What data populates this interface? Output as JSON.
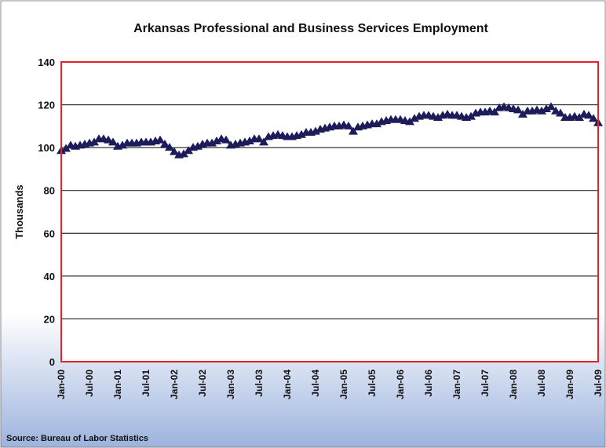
{
  "chart_data": {
    "type": "line",
    "title": "Arkansas Professional and Business Services Employment",
    "y_label": "Thousands",
    "source": "Source: Bureau of Labor Statistics",
    "categories": [
      "Jan-00",
      null,
      null,
      null,
      null,
      null,
      "Jul-00",
      null,
      null,
      null,
      null,
      null,
      "Jan-01",
      null,
      null,
      null,
      null,
      null,
      "Jul-01",
      null,
      null,
      null,
      null,
      null,
      "Jan-02",
      null,
      null,
      null,
      null,
      null,
      "Jul-02",
      null,
      null,
      null,
      null,
      null,
      "Jan-03",
      null,
      null,
      null,
      null,
      null,
      "Jul-03",
      null,
      null,
      null,
      null,
      null,
      "Jan-04",
      null,
      null,
      null,
      null,
      null,
      "Jul-04",
      null,
      null,
      null,
      null,
      null,
      "Jan-05",
      null,
      null,
      null,
      null,
      null,
      "Jul-05",
      null,
      null,
      null,
      null,
      null,
      "Jan-06",
      null,
      null,
      null,
      null,
      null,
      "Jul-06",
      null,
      null,
      null,
      null,
      null,
      "Jan-07",
      null,
      null,
      null,
      null,
      null,
      "Jul-07",
      null,
      null,
      null,
      null,
      null,
      "Jan-08",
      null,
      null,
      null,
      null,
      null,
      "Jul-08",
      null,
      null,
      null,
      null,
      null,
      "Jan-09",
      null,
      null,
      null,
      null,
      null,
      "Jul-09"
    ],
    "series": [
      {
        "name": "Employment",
        "color": "#1c1c5a",
        "values": [
          98.5,
          99.5,
          101,
          100.5,
          101,
          101.5,
          102,
          102.5,
          104,
          104,
          103.5,
          102.5,
          100.5,
          101,
          102,
          102,
          102,
          102.5,
          102.5,
          102.5,
          103,
          103.5,
          101.5,
          100,
          98,
          96.5,
          97,
          98.5,
          100,
          100.5,
          101.5,
          102,
          102,
          103,
          104,
          103.5,
          101,
          101.5,
          102,
          102.5,
          103,
          104,
          104,
          102.5,
          105,
          105.5,
          106,
          105.5,
          105,
          105,
          105.5,
          106,
          107,
          107,
          107.5,
          108.5,
          109,
          109.5,
          110,
          110,
          110.5,
          110,
          107.5,
          109.5,
          110,
          110.5,
          111,
          111,
          112,
          112.5,
          113,
          113,
          113,
          112.5,
          112,
          113.5,
          114.5,
          115,
          115,
          114.5,
          114,
          115,
          115.5,
          115,
          115,
          114.5,
          114,
          114.5,
          116,
          116.5,
          116.5,
          117,
          116.5,
          118.5,
          119,
          118.5,
          118,
          117.5,
          115.5,
          117,
          117,
          117.5,
          117,
          118,
          119,
          117,
          116,
          114,
          114,
          114.5,
          114,
          115.5,
          115,
          113.5,
          111.5
        ]
      }
    ],
    "ylim": [
      0,
      140
    ],
    "yticks": [
      0,
      20,
      40,
      60,
      80,
      100,
      120,
      140
    ],
    "grid": true
  }
}
